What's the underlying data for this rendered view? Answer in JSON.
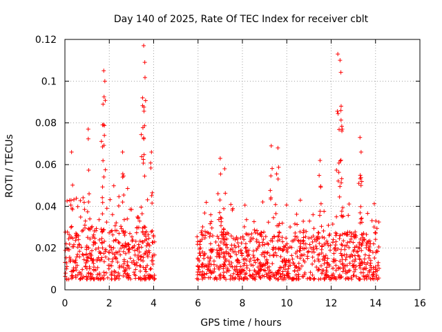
{
  "chart_data": {
    "type": "scatter",
    "title": "Day 140 of 2025, Rate Of TEC Index for receiver cblt",
    "xlabel": "GPS time / hours",
    "ylabel": "ROTI / TECUs",
    "xlim": [
      0,
      16
    ],
    "ylim": [
      0,
      0.12
    ],
    "x_ticks": [
      "0",
      "2",
      "4",
      "6",
      "8",
      "10",
      "12",
      "14",
      "16"
    ],
    "y_ticks": [
      "0",
      "0.02",
      "0.04",
      "0.06",
      "0.08",
      "0.1",
      "0.12"
    ],
    "grid": true,
    "marker": "+",
    "color": "#ff0000",
    "series": [
      {
        "name": "ROTI",
        "segments": [
          {
            "start": 0.0,
            "end": 4.05,
            "typical_low": 0.005,
            "typical_high": 0.03
          },
          {
            "start": 5.95,
            "end": 14.2,
            "typical_low": 0.005,
            "typical_high": 0.028
          }
        ],
        "peaks": [
          {
            "x": 0.3,
            "y": 0.066
          },
          {
            "x": 1.05,
            "y": 0.077
          },
          {
            "x": 1.7,
            "y": 0.079
          },
          {
            "x": 1.75,
            "y": 0.105
          },
          {
            "x": 1.8,
            "y": 0.1
          },
          {
            "x": 2.6,
            "y": 0.066
          },
          {
            "x": 3.5,
            "y": 0.092
          },
          {
            "x": 3.55,
            "y": 0.117
          },
          {
            "x": 3.6,
            "y": 0.109
          },
          {
            "x": 3.9,
            "y": 0.066
          },
          {
            "x": 7.0,
            "y": 0.063
          },
          {
            "x": 7.2,
            "y": 0.058
          },
          {
            "x": 9.3,
            "y": 0.069
          },
          {
            "x": 9.6,
            "y": 0.068
          },
          {
            "x": 11.5,
            "y": 0.062
          },
          {
            "x": 12.3,
            "y": 0.113
          },
          {
            "x": 12.4,
            "y": 0.11
          },
          {
            "x": 12.45,
            "y": 0.088
          },
          {
            "x": 12.5,
            "y": 0.077
          },
          {
            "x": 13.3,
            "y": 0.073
          },
          {
            "x": 13.35,
            "y": 0.066
          }
        ]
      }
    ]
  }
}
